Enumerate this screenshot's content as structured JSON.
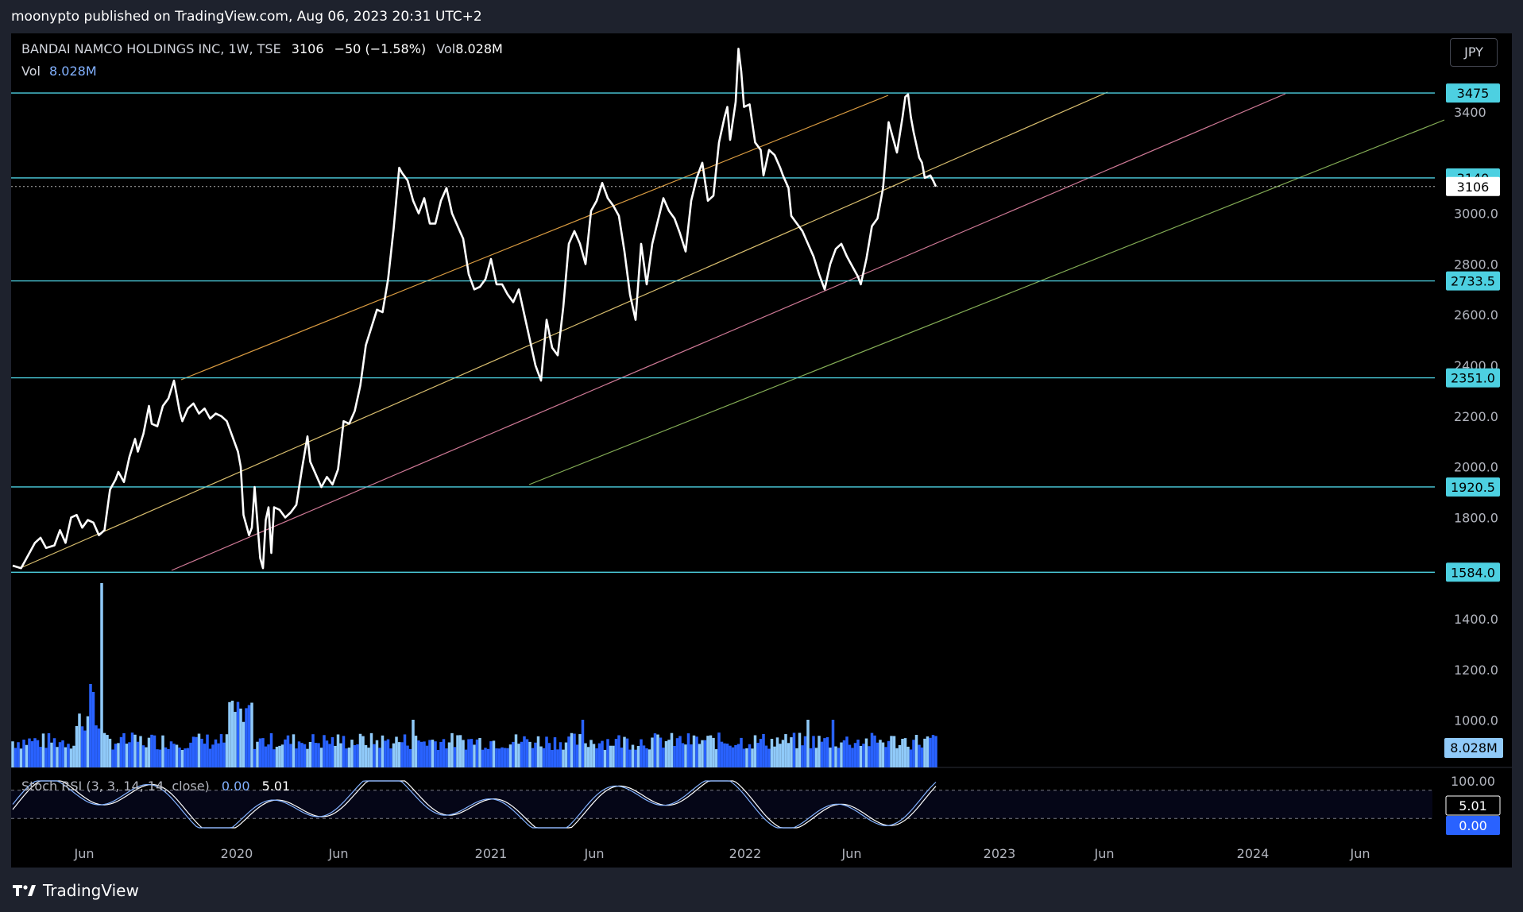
{
  "header": {
    "publisher": "moonypto published on TradingView.com, Aug 06, 2023 20:31 UTC+2"
  },
  "legend": {
    "symbol": "BANDAI NAMCO HOLDINGS INC, 1W, TSE",
    "last": "3106",
    "change": "−50 (−1.58%)",
    "vol_label": "Vol",
    "vol_value": "8.028M"
  },
  "volume_legend": {
    "label": "Vol",
    "value": "8.028M"
  },
  "currency_button": "JPY",
  "rsi_legend": {
    "label": "Stoch RSI (3, 3, 14, 14, close)",
    "k": "0.00",
    "d": "5.01"
  },
  "branding": "TradingView",
  "colors": {
    "price": "#ffffff",
    "level": "#4dd0e1",
    "channel_orange": "#ffb74d",
    "channel_yellow": "#ffe082",
    "channel_pink": "#f48fb1",
    "channel_green": "#9ccc65",
    "volume_dark": "#2962ff",
    "volume_light": "#90caf9",
    "rsi_k": "#82b1ff",
    "rsi_d": "#ffffff"
  },
  "chart_data": {
    "type": "line",
    "interval": "1W",
    "y_axis_ticks": [
      "3400",
      "3000.0",
      "2800.0",
      "2600.0",
      "2400.0",
      "2200.0",
      "2000.0",
      "1800.0",
      "1400.0",
      "1200.0",
      "1000.0"
    ],
    "x_axis_ticks": [
      "Jun",
      "2020",
      "Jun",
      "2021",
      "Jun",
      "2022",
      "Jun",
      "2023",
      "Jun",
      "2024",
      "Jun"
    ],
    "price_labels": [
      {
        "text": "3475",
        "value": 3475,
        "kind": "level"
      },
      {
        "text": "3140",
        "value": 3140,
        "kind": "level"
      },
      {
        "text": "3106",
        "value": 3106,
        "kind": "last"
      },
      {
        "text": "2733.5",
        "value": 2733.5,
        "kind": "level"
      },
      {
        "text": "2351.0",
        "value": 2351,
        "kind": "level"
      },
      {
        "text": "1920.5",
        "value": 1920.5,
        "kind": "level"
      },
      {
        "text": "1584.0",
        "value": 1584,
        "kind": "level"
      }
    ],
    "volume_label": "8.028M",
    "rsi_labels": [
      {
        "text": "100.00",
        "value": 100,
        "kind": "tick"
      },
      {
        "text": "5.01",
        "value": 5.01,
        "kind": "d"
      },
      {
        "text": "0.00",
        "value": 0,
        "kind": "k"
      }
    ],
    "price_series": [
      {
        "t": 0,
        "v": 1610
      },
      {
        "t": 3,
        "v": 1600
      },
      {
        "t": 6,
        "v": 1660
      },
      {
        "t": 8,
        "v": 1700
      },
      {
        "t": 10,
        "v": 1720
      },
      {
        "t": 12,
        "v": 1680
      },
      {
        "t": 15,
        "v": 1690
      },
      {
        "t": 17,
        "v": 1750
      },
      {
        "t": 19,
        "v": 1700
      },
      {
        "t": 21,
        "v": 1800
      },
      {
        "t": 23,
        "v": 1810
      },
      {
        "t": 25,
        "v": 1760
      },
      {
        "t": 27,
        "v": 1790
      },
      {
        "t": 29,
        "v": 1780
      },
      {
        "t": 31,
        "v": 1730
      },
      {
        "t": 33,
        "v": 1750
      },
      {
        "t": 35,
        "v": 1910
      },
      {
        "t": 37,
        "v": 1950
      },
      {
        "t": 38,
        "v": 1980
      },
      {
        "t": 40,
        "v": 1940
      },
      {
        "t": 42,
        "v": 2040
      },
      {
        "t": 44,
        "v": 2110
      },
      {
        "t": 45,
        "v": 2060
      },
      {
        "t": 47,
        "v": 2130
      },
      {
        "t": 49,
        "v": 2240
      },
      {
        "t": 50,
        "v": 2170
      },
      {
        "t": 52,
        "v": 2160
      },
      {
        "t": 54,
        "v": 2240
      },
      {
        "t": 56,
        "v": 2270
      },
      {
        "t": 58,
        "v": 2340
      },
      {
        "t": 60,
        "v": 2220
      },
      {
        "t": 61,
        "v": 2180
      },
      {
        "t": 63,
        "v": 2230
      },
      {
        "t": 65,
        "v": 2250
      },
      {
        "t": 67,
        "v": 2210
      },
      {
        "t": 69,
        "v": 2230
      },
      {
        "t": 71,
        "v": 2190
      },
      {
        "t": 73,
        "v": 2210
      },
      {
        "t": 75,
        "v": 2200
      },
      {
        "t": 77,
        "v": 2180
      },
      {
        "t": 79,
        "v": 2120
      },
      {
        "t": 81,
        "v": 2060
      },
      {
        "t": 82,
        "v": 2000
      },
      {
        "t": 83,
        "v": 1810
      },
      {
        "t": 84,
        "v": 1770
      },
      {
        "t": 85,
        "v": 1730
      },
      {
        "t": 86,
        "v": 1760
      },
      {
        "t": 87,
        "v": 1920
      },
      {
        "t": 89,
        "v": 1640
      },
      {
        "t": 90,
        "v": 1600
      },
      {
        "t": 91,
        "v": 1790
      },
      {
        "t": 92,
        "v": 1840
      },
      {
        "t": 93,
        "v": 1660
      },
      {
        "t": 94,
        "v": 1840
      },
      {
        "t": 96,
        "v": 1830
      },
      {
        "t": 98,
        "v": 1800
      },
      {
        "t": 100,
        "v": 1820
      },
      {
        "t": 102,
        "v": 1850
      },
      {
        "t": 104,
        "v": 1990
      },
      {
        "t": 106,
        "v": 2120
      },
      {
        "t": 107,
        "v": 2020
      },
      {
        "t": 109,
        "v": 1970
      },
      {
        "t": 111,
        "v": 1920
      },
      {
        "t": 113,
        "v": 1960
      },
      {
        "t": 115,
        "v": 1930
      },
      {
        "t": 117,
        "v": 1990
      },
      {
        "t": 119,
        "v": 2180
      },
      {
        "t": 121,
        "v": 2170
      },
      {
        "t": 123,
        "v": 2220
      },
      {
        "t": 125,
        "v": 2320
      },
      {
        "t": 127,
        "v": 2480
      },
      {
        "t": 129,
        "v": 2550
      },
      {
        "t": 131,
        "v": 2620
      },
      {
        "t": 133,
        "v": 2610
      },
      {
        "t": 135,
        "v": 2740
      },
      {
        "t": 137,
        "v": 2940
      },
      {
        "t": 139,
        "v": 3180
      },
      {
        "t": 140,
        "v": 3160
      },
      {
        "t": 142,
        "v": 3130
      },
      {
        "t": 144,
        "v": 3050
      },
      {
        "t": 146,
        "v": 3000
      },
      {
        "t": 148,
        "v": 3060
      },
      {
        "t": 150,
        "v": 2960
      },
      {
        "t": 152,
        "v": 2960
      },
      {
        "t": 154,
        "v": 3050
      },
      {
        "t": 156,
        "v": 3100
      },
      {
        "t": 158,
        "v": 3000
      },
      {
        "t": 160,
        "v": 2950
      },
      {
        "t": 162,
        "v": 2900
      },
      {
        "t": 164,
        "v": 2760
      },
      {
        "t": 166,
        "v": 2700
      },
      {
        "t": 168,
        "v": 2710
      },
      {
        "t": 170,
        "v": 2740
      },
      {
        "t": 172,
        "v": 2820
      },
      {
        "t": 174,
        "v": 2720
      },
      {
        "t": 176,
        "v": 2720
      },
      {
        "t": 178,
        "v": 2680
      },
      {
        "t": 180,
        "v": 2650
      },
      {
        "t": 182,
        "v": 2700
      },
      {
        "t": 184,
        "v": 2600
      },
      {
        "t": 186,
        "v": 2500
      },
      {
        "t": 188,
        "v": 2400
      },
      {
        "t": 190,
        "v": 2340
      },
      {
        "t": 192,
        "v": 2580
      },
      {
        "t": 194,
        "v": 2470
      },
      {
        "t": 196,
        "v": 2440
      },
      {
        "t": 198,
        "v": 2630
      },
      {
        "t": 200,
        "v": 2880
      },
      {
        "t": 202,
        "v": 2930
      },
      {
        "t": 204,
        "v": 2880
      },
      {
        "t": 206,
        "v": 2800
      },
      {
        "t": 208,
        "v": 3010
      },
      {
        "t": 210,
        "v": 3050
      },
      {
        "t": 212,
        "v": 3120
      },
      {
        "t": 214,
        "v": 3060
      },
      {
        "t": 216,
        "v": 3030
      },
      {
        "t": 218,
        "v": 2990
      },
      {
        "t": 220,
        "v": 2850
      },
      {
        "t": 222,
        "v": 2680
      },
      {
        "t": 224,
        "v": 2580
      },
      {
        "t": 226,
        "v": 2880
      },
      {
        "t": 228,
        "v": 2720
      },
      {
        "t": 230,
        "v": 2880
      },
      {
        "t": 232,
        "v": 2970
      },
      {
        "t": 234,
        "v": 3060
      },
      {
        "t": 236,
        "v": 3010
      },
      {
        "t": 238,
        "v": 2980
      },
      {
        "t": 240,
        "v": 2920
      },
      {
        "t": 242,
        "v": 2850
      },
      {
        "t": 244,
        "v": 3050
      },
      {
        "t": 246,
        "v": 3140
      },
      {
        "t": 248,
        "v": 3200
      },
      {
        "t": 250,
        "v": 3050
      },
      {
        "t": 252,
        "v": 3070
      },
      {
        "t": 254,
        "v": 3280
      },
      {
        "t": 256,
        "v": 3380
      },
      {
        "t": 257,
        "v": 3420
      },
      {
        "t": 258,
        "v": 3290
      },
      {
        "t": 260,
        "v": 3440
      },
      {
        "t": 261,
        "v": 3650
      },
      {
        "t": 262,
        "v": 3560
      },
      {
        "t": 263,
        "v": 3420
      },
      {
        "t": 265,
        "v": 3430
      },
      {
        "t": 267,
        "v": 3280
      },
      {
        "t": 269,
        "v": 3250
      },
      {
        "t": 270,
        "v": 3150
      },
      {
        "t": 272,
        "v": 3250
      },
      {
        "t": 274,
        "v": 3230
      },
      {
        "t": 276,
        "v": 3180
      },
      {
        "t": 277,
        "v": 3150
      },
      {
        "t": 279,
        "v": 3100
      },
      {
        "t": 280,
        "v": 2990
      },
      {
        "t": 282,
        "v": 2960
      },
      {
        "t": 284,
        "v": 2930
      },
      {
        "t": 286,
        "v": 2880
      },
      {
        "t": 288,
        "v": 2830
      },
      {
        "t": 290,
        "v": 2760
      },
      {
        "t": 292,
        "v": 2700
      },
      {
        "t": 294,
        "v": 2800
      },
      {
        "t": 296,
        "v": 2860
      },
      {
        "t": 298,
        "v": 2880
      },
      {
        "t": 300,
        "v": 2830
      },
      {
        "t": 302,
        "v": 2790
      },
      {
        "t": 304,
        "v": 2750
      },
      {
        "t": 305,
        "v": 2720
      },
      {
        "t": 307,
        "v": 2820
      },
      {
        "t": 309,
        "v": 2950
      },
      {
        "t": 311,
        "v": 2980
      },
      {
        "t": 313,
        "v": 3100
      },
      {
        "t": 315,
        "v": 3360
      },
      {
        "t": 316,
        "v": 3320
      },
      {
        "t": 318,
        "v": 3240
      },
      {
        "t": 320,
        "v": 3380
      },
      {
        "t": 321,
        "v": 3460
      },
      {
        "t": 322,
        "v": 3470
      },
      {
        "t": 323,
        "v": 3380
      },
      {
        "t": 324,
        "v": 3320
      },
      {
        "t": 326,
        "v": 3220
      },
      {
        "t": 327,
        "v": 3200
      },
      {
        "t": 328,
        "v": 3140
      },
      {
        "t": 330,
        "v": 3150
      },
      {
        "t": 331,
        "v": 3130
      },
      {
        "t": 332,
        "v": 3106
      }
    ]
  }
}
